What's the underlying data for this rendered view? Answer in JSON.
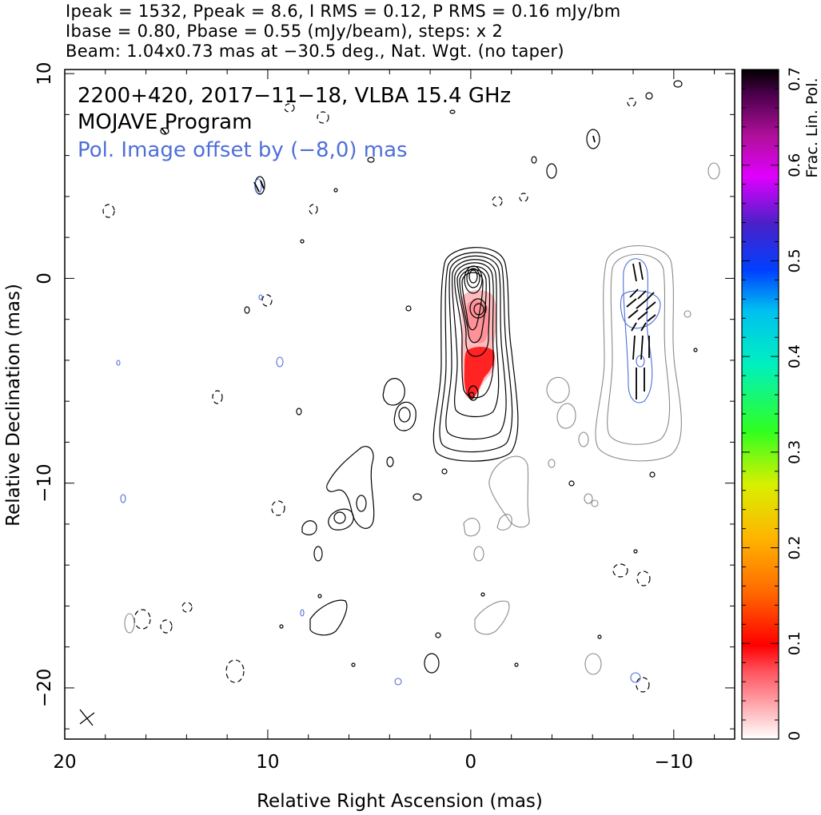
{
  "header": {
    "line1": "Ipeak = 1532, Ppeak = 8.6, I RMS = 0.12, P RMS = 0.16 mJy/bm",
    "line2": "Ibase = 0.80, Pbase = 0.55 (mJy/beam), steps: x 2",
    "line3": "Beam: 1.04x0.73 mas at −30.5 deg., Nat. Wgt. (no taper)"
  },
  "plot": {
    "title_line1": "2200+420, 2017−11−18, VLBA 15.4 GHz",
    "title_line2": "MOJAVE Program",
    "title_line3": "Pol. Image offset by (−8,0) mas",
    "xlabel": "Relative Right Ascension (mas)",
    "ylabel": "Relative Declination (mas)"
  },
  "colorbar": {
    "label": "Frac. Lin. Pol.",
    "ticks": [
      "0",
      "0.1",
      "0.2",
      "0.3",
      "0.4",
      "0.5",
      "0.6",
      "0.7"
    ]
  },
  "colors": {
    "total_intensity_contour": "#000000",
    "pol_contour": "#8a8a8a",
    "pol_label": "#4f6fd8",
    "vectors": "#000000"
  },
  "chart_data": {
    "type": "contour map",
    "xlim": [
      20,
      -13
    ],
    "ylim": [
      -22.5,
      10.2
    ],
    "xticks": [
      20,
      10,
      0,
      -10
    ],
    "yticks": [
      10,
      0,
      -10,
      -20
    ],
    "x_tick_labels": [
      "20",
      "10",
      "0",
      "−10"
    ],
    "y_tick_labels": [
      "10",
      "0",
      "−10",
      "−20"
    ],
    "inverted_x": true,
    "peak_intensity_mJy_per_beam": 1532,
    "peak_polarized_mJy_per_beam": 8.6,
    "contour_base_mJy_per_beam": 0.8,
    "contour_step_factor": 2,
    "core_position_mas": [
      0,
      0
    ],
    "frac_pol_range": [
      0,
      0.7
    ],
    "pol_image_offset_mas": [
      -8,
      0
    ],
    "frac_pol_knots": [
      {
        "x": 0.0,
        "y": -1.5,
        "value": 0.04
      },
      {
        "x": -0.3,
        "y": -3.0,
        "value": 0.06
      },
      {
        "x": -0.2,
        "y": -4.5,
        "value": 0.1
      },
      {
        "x": 0.1,
        "y": -5.6,
        "value": 0.12
      }
    ]
  }
}
